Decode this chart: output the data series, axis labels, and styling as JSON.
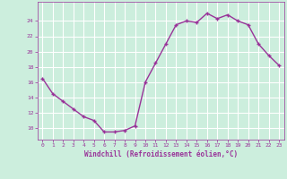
{
  "x": [
    0,
    1,
    2,
    3,
    4,
    5,
    6,
    7,
    8,
    9,
    10,
    11,
    12,
    13,
    14,
    15,
    16,
    17,
    18,
    19,
    20,
    21,
    22,
    23
  ],
  "y": [
    16.5,
    14.5,
    13.5,
    12.5,
    11.5,
    11.0,
    9.5,
    9.5,
    9.7,
    10.3,
    16.0,
    18.5,
    21.0,
    23.5,
    24.0,
    23.8,
    25.0,
    24.3,
    24.8,
    24.0,
    23.5,
    21.0,
    19.5,
    18.2
  ],
  "line_color": "#993399",
  "marker": "+",
  "marker_size": 3,
  "bg_color": "#cceedd",
  "grid_color": "#ffffff",
  "xlabel": "Windchill (Refroidissement éolien,°C)",
  "xlabel_color": "#993399",
  "tick_color": "#993399",
  "ylim": [
    8.5,
    26.5
  ],
  "xlim": [
    -0.5,
    23.5
  ],
  "yticks": [
    10,
    12,
    14,
    16,
    18,
    20,
    22,
    24
  ],
  "xticks": [
    0,
    1,
    2,
    3,
    4,
    5,
    6,
    7,
    8,
    9,
    10,
    11,
    12,
    13,
    14,
    15,
    16,
    17,
    18,
    19,
    20,
    21,
    22,
    23
  ],
  "line_width": 1.0
}
